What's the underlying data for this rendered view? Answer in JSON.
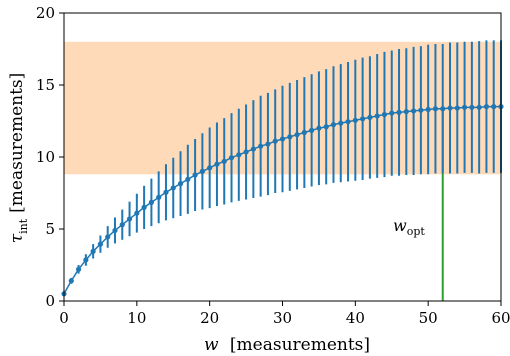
{
  "chart_data": {
    "type": "line",
    "xlim": [
      0,
      60
    ],
    "ylim": [
      0,
      20
    ],
    "x_ticks": [
      0,
      10,
      20,
      30,
      40,
      50,
      60
    ],
    "y_ticks": [
      0,
      5,
      10,
      15,
      20
    ],
    "xlabel_var": "w",
    "xlabel_unit": "[measurements]",
    "ylabel_var": "τ",
    "ylabel_sub": "int",
    "ylabel_unit": "[measurements]",
    "grid": false,
    "colors": {
      "series": "#1f77b4",
      "band": "#ffdab9",
      "optimum_line": "#2ca02c"
    },
    "band": {
      "x_start": 0,
      "x_end": 60,
      "y_low": 8.8,
      "y_high": 18.0
    },
    "optimum": {
      "x": 52,
      "y_top": 13.2,
      "label_var": "w",
      "label_sub": "opt"
    },
    "series": [
      {
        "x": [
          0,
          1,
          2,
          3,
          4,
          5,
          6,
          7,
          8,
          9,
          10,
          11,
          12,
          13,
          14,
          15,
          16,
          17,
          18,
          19,
          20,
          21,
          22,
          23,
          24,
          25,
          26,
          27,
          28,
          29,
          30,
          31,
          32,
          33,
          34,
          35,
          36,
          37,
          38,
          39,
          40,
          41,
          42,
          43,
          44,
          45,
          46,
          47,
          48,
          49,
          50,
          51,
          52,
          53,
          54,
          55,
          56,
          57,
          58,
          59,
          60
        ],
        "y": [
          0.5,
          1.4,
          2.2,
          2.85,
          3.45,
          3.95,
          4.45,
          4.9,
          5.3,
          5.7,
          6.1,
          6.5,
          6.85,
          7.2,
          7.55,
          7.85,
          8.15,
          8.45,
          8.75,
          9.0,
          9.25,
          9.5,
          9.7,
          9.95,
          10.15,
          10.35,
          10.55,
          10.75,
          10.9,
          11.1,
          11.25,
          11.4,
          11.55,
          11.7,
          11.85,
          12.0,
          12.1,
          12.25,
          12.35,
          12.45,
          12.55,
          12.65,
          12.75,
          12.85,
          12.95,
          13.05,
          13.1,
          13.15,
          13.2,
          13.25,
          13.3,
          13.35,
          13.35,
          13.4,
          13.4,
          13.45,
          13.45,
          13.45,
          13.5,
          13.5,
          13.5
        ],
        "err": [
          0.1,
          0.2,
          0.3,
          0.4,
          0.5,
          0.6,
          0.75,
          0.9,
          1.05,
          1.2,
          1.35,
          1.5,
          1.65,
          1.8,
          1.95,
          2.1,
          2.25,
          2.4,
          2.5,
          2.65,
          2.8,
          2.9,
          3.0,
          3.1,
          3.2,
          3.3,
          3.4,
          3.5,
          3.55,
          3.6,
          3.7,
          3.75,
          3.8,
          3.85,
          3.9,
          3.95,
          4.0,
          4.05,
          4.1,
          4.15,
          4.2,
          4.25,
          4.25,
          4.3,
          4.35,
          4.35,
          4.4,
          4.4,
          4.45,
          4.45,
          4.5,
          4.5,
          4.5,
          4.55,
          4.55,
          4.55,
          4.55,
          4.6,
          4.6,
          4.6,
          4.6
        ]
      }
    ]
  }
}
